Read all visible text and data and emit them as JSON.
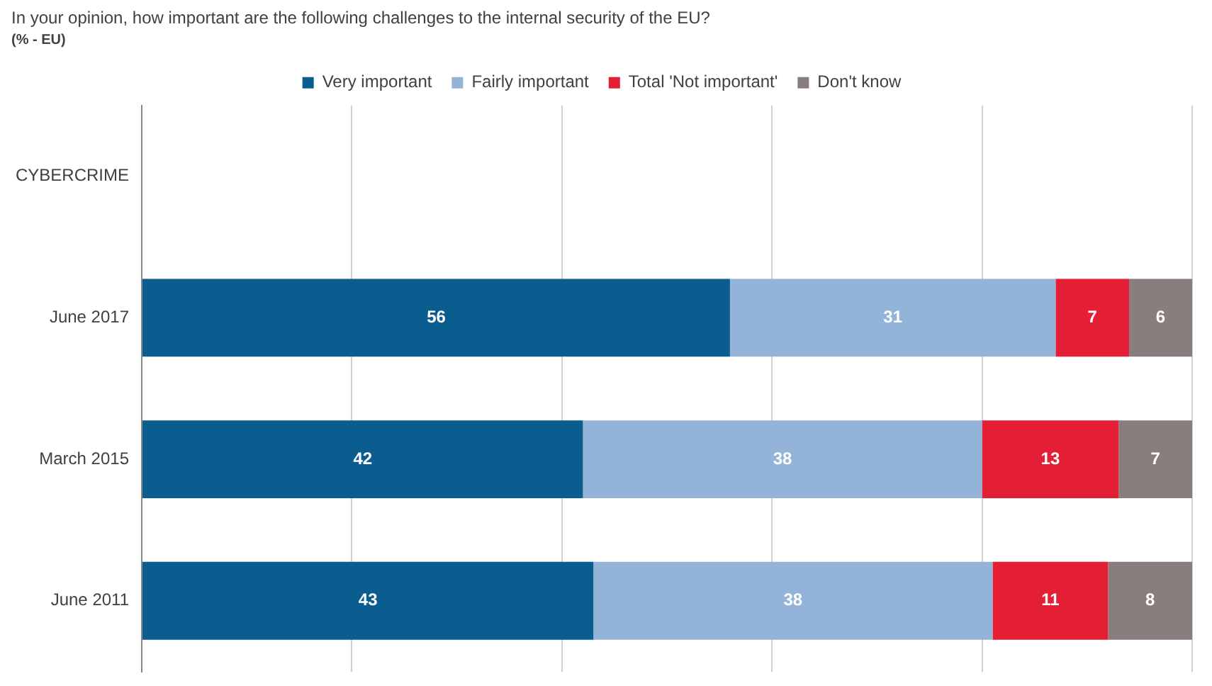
{
  "chart_data": {
    "type": "bar",
    "orientation": "horizontal",
    "stacked": true,
    "title": "In your opinion, how important are the following challenges to the internal security of the EU?",
    "subtitle": "(% - EU)",
    "categories": [
      "CYBERCRIME",
      "June 2017",
      "March 2015",
      "June 2011"
    ],
    "series": [
      {
        "name": "Very important",
        "color": "#0b5d8f",
        "values": [
          null,
          56,
          42,
          43
        ]
      },
      {
        "name": "Fairly important",
        "color": "#93b3d8",
        "values": [
          null,
          31,
          38,
          38
        ]
      },
      {
        "name": "Total 'Not important'",
        "color": "#e41f35",
        "values": [
          null,
          7,
          13,
          11
        ]
      },
      {
        "name": "Don't know",
        "color": "#8a7d7d",
        "values": [
          null,
          6,
          7,
          8
        ]
      }
    ],
    "xlim": [
      0,
      100
    ],
    "xticks": [
      {
        "value": 0,
        "label": null
      },
      {
        "value": 20,
        "label": null
      },
      {
        "value": 40,
        "label": null
      },
      {
        "value": 60,
        "label": null
      },
      {
        "value": 80,
        "label": null
      },
      {
        "value": 100,
        "label": null
      }
    ],
    "grid": "x",
    "legend": "top",
    "tick_labels": "y",
    "data_labels": true
  }
}
